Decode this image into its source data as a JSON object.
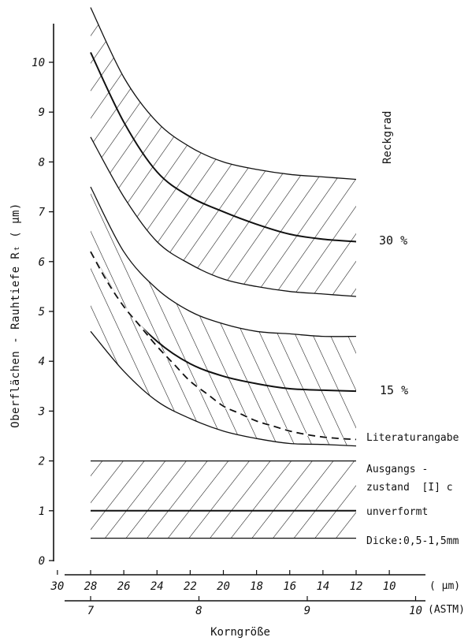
{
  "chart_data": {
    "type": "area",
    "title": "",
    "ylabel": "Oberflächen - Rauhtiefe Rₜ ( µm)",
    "xlabel": "Korngröße",
    "ylim": [
      0,
      10.5
    ],
    "y_ticks": [
      "0",
      "1",
      "2",
      "3",
      "4",
      "5",
      "6",
      "7",
      "8",
      "9",
      "10"
    ],
    "x_axis_um": {
      "ticks": [
        "30",
        "28",
        "26",
        "24",
        "22",
        "20",
        "18",
        "16",
        "14",
        "12",
        "10"
      ],
      "unit": "( µm)"
    },
    "x_axis_astm": {
      "ticks": [
        "7",
        "8",
        "9",
        "10"
      ],
      "unit": "(ASTM)"
    },
    "legend_title": "Reckgrad",
    "x_domain_um": [
      28,
      12
    ],
    "bands": [
      {
        "name": "30 %",
        "x": [
          28,
          26,
          24,
          22,
          20,
          18,
          16,
          14,
          12
        ],
        "upper": [
          11.1,
          9.7,
          8.8,
          8.3,
          8.0,
          7.85,
          7.75,
          7.7,
          7.65
        ],
        "center": [
          10.2,
          8.8,
          7.8,
          7.3,
          7.0,
          6.75,
          6.55,
          6.45,
          6.4
        ],
        "lower": [
          8.5,
          7.3,
          6.4,
          5.95,
          5.65,
          5.5,
          5.4,
          5.35,
          5.3
        ]
      },
      {
        "name": "15 %",
        "x": [
          28,
          26,
          24,
          22,
          20,
          18,
          16,
          14,
          12
        ],
        "upper": [
          7.5,
          6.2,
          5.45,
          5.0,
          4.75,
          4.6,
          4.55,
          4.5,
          4.5
        ],
        "center": [
          6.2,
          5.1,
          4.4,
          3.95,
          3.7,
          3.55,
          3.45,
          3.42,
          3.4
        ],
        "lower": [
          4.6,
          3.8,
          3.2,
          2.85,
          2.6,
          2.45,
          2.35,
          2.33,
          2.3
        ]
      },
      {
        "name": "unverformt",
        "x": [
          28,
          12
        ],
        "upper": [
          2.0,
          2.0
        ],
        "center": [
          1.0,
          1.0
        ],
        "lower": [
          0.45,
          0.45
        ]
      }
    ],
    "series": [
      {
        "name": "Literaturangabe",
        "style": "dashed",
        "x": [
          28,
          27,
          26,
          25,
          24,
          23,
          22,
          21,
          20,
          19,
          18,
          17,
          16,
          15,
          14,
          13,
          12
        ],
        "y": [
          6.2,
          5.6,
          5.1,
          4.7,
          4.3,
          3.95,
          3.6,
          3.35,
          3.1,
          2.95,
          2.8,
          2.7,
          2.6,
          2.53,
          2.48,
          2.45,
          2.43
        ]
      }
    ],
    "annotations": [
      "Reckgrad",
      "30 %",
      "15 %",
      "Literaturangabe",
      "Ausgangs -",
      "zustand  [I] c",
      "unverformt",
      "Dicke:0,5-1,5mm"
    ]
  }
}
